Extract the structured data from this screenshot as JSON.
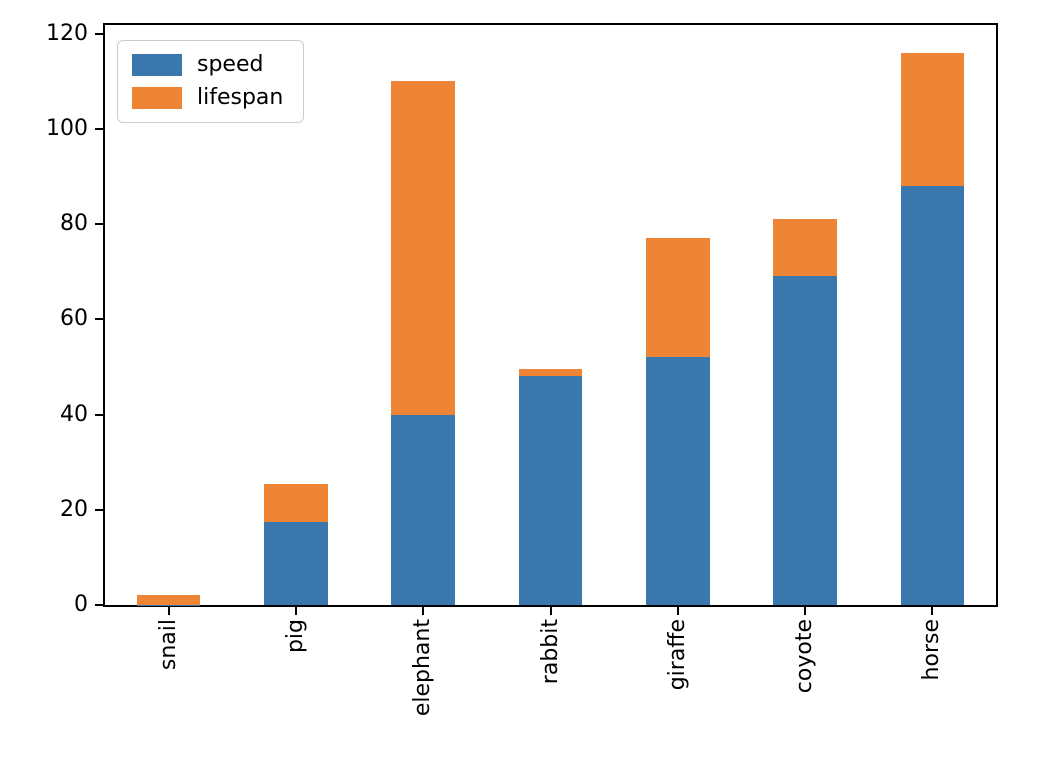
{
  "figure": {
    "background_color": "#ffffff",
    "axis_color": "#000000",
    "legend_border_color": "#cccccc"
  },
  "chart_data": {
    "type": "bar",
    "stacked": true,
    "orientation": "vertical",
    "categories": [
      "snail",
      "pig",
      "elephant",
      "rabbit",
      "giraffe",
      "coyote",
      "horse"
    ],
    "series": [
      {
        "name": "speed",
        "color": "#3a77ad",
        "values": [
          0.1,
          17.5,
          40,
          48,
          52,
          69,
          88
        ]
      },
      {
        "name": "lifespan",
        "color": "#ee8534",
        "values": [
          2,
          8,
          70,
          1.5,
          25,
          12,
          28
        ]
      }
    ],
    "stack_totals": [
      2.1,
      25.5,
      110,
      49.5,
      77,
      81,
      116
    ],
    "yticks": [
      0,
      20,
      40,
      60,
      80,
      100,
      120
    ],
    "ylim": [
      0,
      121.8
    ],
    "grid": false,
    "legend_position": "upper-left",
    "xtick_rotation_deg": 90
  }
}
